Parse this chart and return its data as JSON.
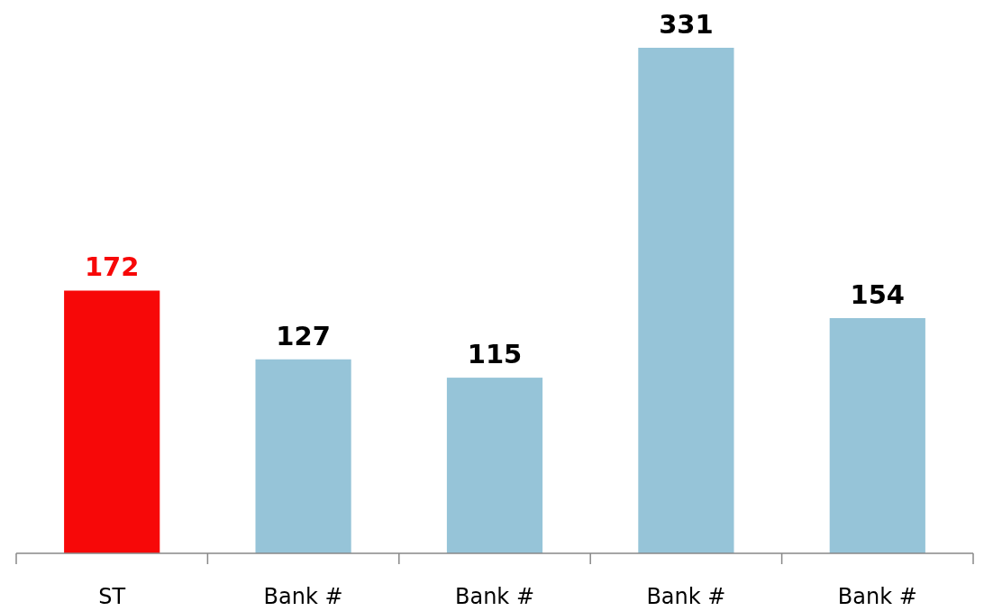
{
  "chart_data": {
    "type": "bar",
    "categories": [
      "ST",
      "Bank #",
      "Bank #",
      "Bank #",
      "Bank #"
    ],
    "values": [
      172,
      127,
      115,
      331,
      154
    ],
    "colors": [
      "#f70808",
      "#96c4d8",
      "#96c4d8",
      "#96c4d8",
      "#96c4d8"
    ],
    "data_labels": true
  }
}
